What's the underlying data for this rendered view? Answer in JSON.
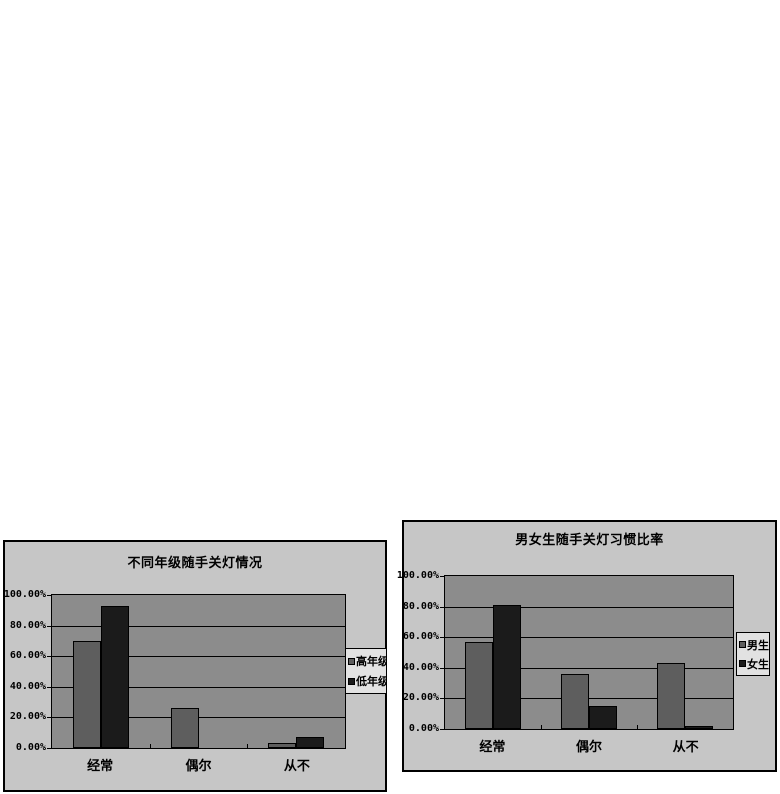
{
  "page": {
    "background": "#ffffff"
  },
  "chart_data": [
    {
      "type": "bar",
      "title": "不同年级随手关灯情况",
      "categories": [
        "经常",
        "偶尔",
        "从不"
      ],
      "series": [
        {
          "name": "高年级",
          "color": "#5e5e5e",
          "values": [
            70,
            26,
            3
          ]
        },
        {
          "name": "低年级",
          "color": "#1b1b1b",
          "values": [
            93,
            0,
            7
          ]
        }
      ],
      "y_ticks": [
        "100.00%",
        "80.00%",
        "60.00%",
        "40.00%",
        "20.00%",
        "0.00%"
      ],
      "ylim": [
        0,
        100
      ],
      "y_step_percent": 20,
      "grid": true,
      "legend_position": "right",
      "colors": {
        "chart_bg": "#c6c6c6",
        "plot_bg": "#8c8c8c",
        "legend_bg": "#e2e2e2",
        "axis": "#000000"
      }
    },
    {
      "type": "bar",
      "title": "男女生随手关灯习惯比率",
      "categories": [
        "经常",
        "偶尔",
        "从不"
      ],
      "series": [
        {
          "name": "男生",
          "color": "#5e5e5e",
          "values": [
            57,
            36,
            43
          ]
        },
        {
          "name": "女生",
          "color": "#1b1b1b",
          "values": [
            81,
            15,
            2
          ]
        }
      ],
      "y_ticks": [
        "100.00%",
        "80.00%",
        "60.00%",
        "40.00%",
        "20.00%",
        "0.00%"
      ],
      "ylim": [
        0,
        100
      ],
      "y_step_percent": 20,
      "grid": true,
      "legend_position": "right",
      "colors": {
        "chart_bg": "#c6c6c6",
        "plot_bg": "#8c8c8c",
        "legend_bg": "#e2e2e2",
        "axis": "#000000"
      }
    }
  ]
}
